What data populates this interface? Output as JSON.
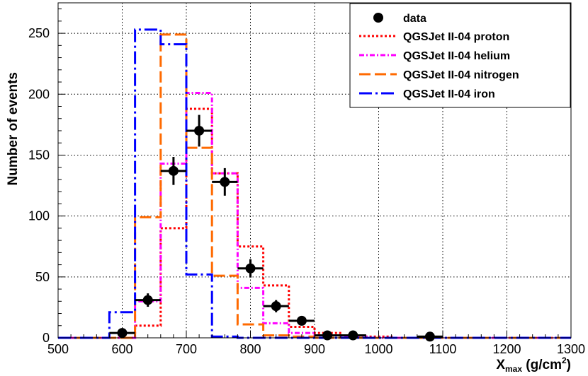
{
  "chart_data": {
    "type": "histogram",
    "xlabel": {
      "main": "X",
      "sub": "max",
      "units": " (g/cm",
      "sup": "2",
      "close": ")"
    },
    "ylabel": "Number of events",
    "xlim": [
      500,
      1300
    ],
    "ylim": [
      0,
      275
    ],
    "xticks": [
      500,
      600,
      700,
      800,
      900,
      1000,
      1100,
      1200,
      1300
    ],
    "yticks": [
      0,
      50,
      100,
      150,
      200,
      250
    ],
    "grid": true,
    "legend_position": "top-right",
    "bin_edges": [
      540,
      580,
      620,
      660,
      700,
      740,
      780,
      820,
      860,
      900,
      940,
      980,
      1020,
      1060,
      1100
    ],
    "series": [
      {
        "name": "QGSJet II-04 proton",
        "color": "#ff0000",
        "style": "dotted",
        "values": [
          0,
          0,
          10,
          90,
          188,
          135,
          75,
          43,
          9,
          4,
          2,
          1,
          0,
          0
        ]
      },
      {
        "name": "QGSJet II-04 helium",
        "color": "#ff00ff",
        "style": "dashdot",
        "values": [
          0,
          0,
          30,
          143,
          201,
          135,
          41,
          12,
          4,
          2,
          1,
          0,
          0,
          0
        ]
      },
      {
        "name": "QGSJet II-04 nitrogen",
        "color": "#ff6a00",
        "style": "longdash",
        "values": [
          0,
          0,
          99,
          249,
          156,
          51,
          11,
          2,
          1,
          0,
          0,
          0,
          0,
          0
        ]
      },
      {
        "name": "QGSJet II-04 iron",
        "color": "#0000ff",
        "style": "dashdotlong",
        "values": [
          0,
          21,
          253,
          241,
          52,
          1,
          0,
          0,
          0,
          0,
          0,
          0,
          0,
          0
        ]
      }
    ],
    "data_points": {
      "name": "data",
      "points": [
        {
          "x": 600,
          "y": 4,
          "yerr": 2
        },
        {
          "x": 640,
          "y": 31,
          "yerr": 5.5
        },
        {
          "x": 680,
          "y": 137,
          "yerr": 11.5
        },
        {
          "x": 720,
          "y": 170,
          "yerr": 13
        },
        {
          "x": 760,
          "y": 128,
          "yerr": 11.3
        },
        {
          "x": 800,
          "y": 57,
          "yerr": 7.5
        },
        {
          "x": 840,
          "y": 26,
          "yerr": 5
        },
        {
          "x": 880,
          "y": 14,
          "yerr": 3.7
        },
        {
          "x": 920,
          "y": 2,
          "yerr": 1.4
        },
        {
          "x": 960,
          "y": 2,
          "yerr": 1.4
        },
        {
          "x": 1080,
          "y": 1,
          "yerr": 1
        }
      ]
    }
  }
}
